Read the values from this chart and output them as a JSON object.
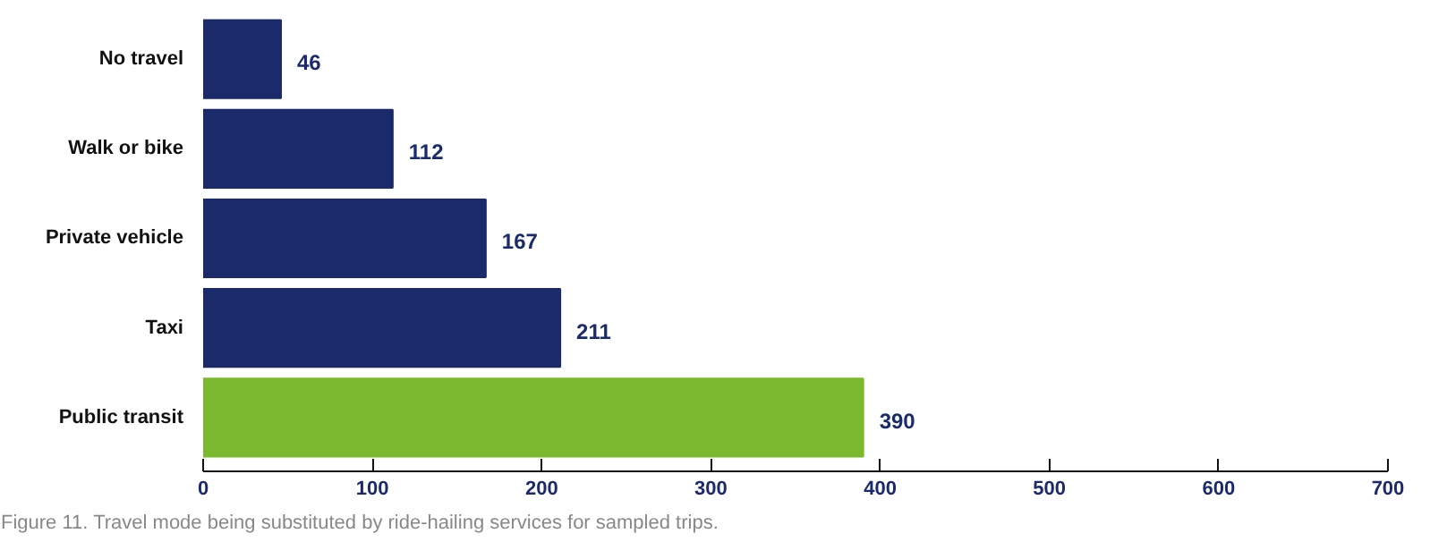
{
  "chart_data": {
    "type": "bar",
    "orientation": "horizontal",
    "categories": [
      "No travel",
      "Walk or bike",
      "Private vehicle",
      "Taxi",
      "Public transit"
    ],
    "values": [
      46,
      112,
      167,
      211,
      390
    ],
    "colors": [
      "#1b2a6b",
      "#1b2a6b",
      "#1b2a6b",
      "#1b2a6b",
      "#7bba2f"
    ],
    "xlim": [
      0,
      700
    ],
    "xticks": [
      0,
      100,
      200,
      300,
      400,
      500,
      600,
      700
    ],
    "data_labels": true,
    "grid": false,
    "annotations": [
      "Figure 11. Travel mode being substituted by ride-hailing services for sampled trips."
    ]
  }
}
